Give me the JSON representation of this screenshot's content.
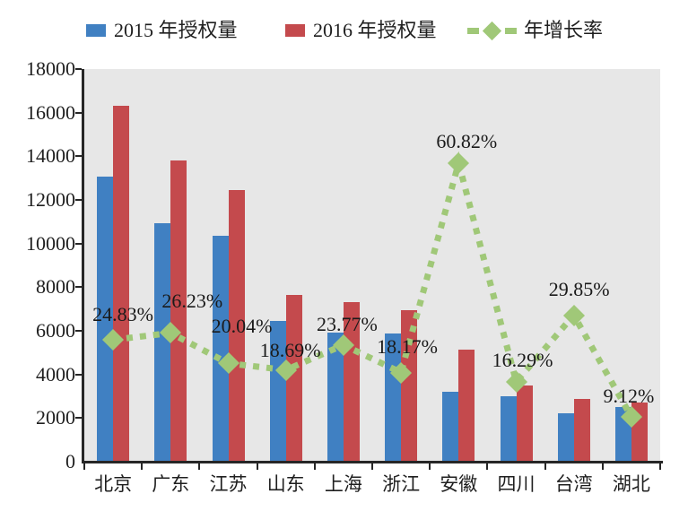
{
  "chart_data": {
    "type": "bar",
    "title": "",
    "categories": [
      "北京",
      "广东",
      "江苏",
      "山东",
      "上海",
      "浙江",
      "安徽",
      "四川",
      "台湾",
      "湖北"
    ],
    "series": [
      {
        "name": "2015 年授权量",
        "type": "bar",
        "color": "#4080C2",
        "values": [
          13060,
          10930,
          10360,
          6450,
          5900,
          5880,
          3185,
          2990,
          2210,
          2490
        ]
      },
      {
        "name": "2016 年授权量",
        "type": "bar",
        "color": "#C44A4D",
        "values": [
          16300,
          13800,
          12435,
          7655,
          7300,
          6950,
          5120,
          3475,
          2870,
          2715
        ]
      },
      {
        "name": "年增长率",
        "type": "line",
        "color": "#A0C878",
        "style": "dashed-with-diamond-markers",
        "values_pct": [
          24.83,
          26.23,
          20.04,
          18.69,
          23.77,
          18.17,
          60.82,
          16.29,
          29.85,
          9.12
        ],
        "point_labels": [
          "24.83%",
          "26.23%",
          "20.04%",
          "18.69%",
          "23.77%",
          "18.17%",
          "60.82%",
          "16.29%",
          "29.85%",
          "9.12%"
        ]
      }
    ],
    "xlabel": "",
    "ylabel": "",
    "ylim": [
      0,
      18000
    ],
    "ytick_step": 2000,
    "yticks": [
      "0",
      "2000",
      "4000",
      "6000",
      "8000",
      "10000",
      "12000",
      "14000",
      "16000",
      "18000"
    ],
    "secondary_axis": {
      "visible": false,
      "implied_max_pct": 80
    },
    "grid": false,
    "legend_position": "top",
    "plot_background": "#E7E7E7",
    "axis_color": "#262626"
  },
  "legend": {
    "item_2015": "2015 年授权量",
    "item_2016": "2016 年授权量",
    "item_growth": "年增长率"
  }
}
